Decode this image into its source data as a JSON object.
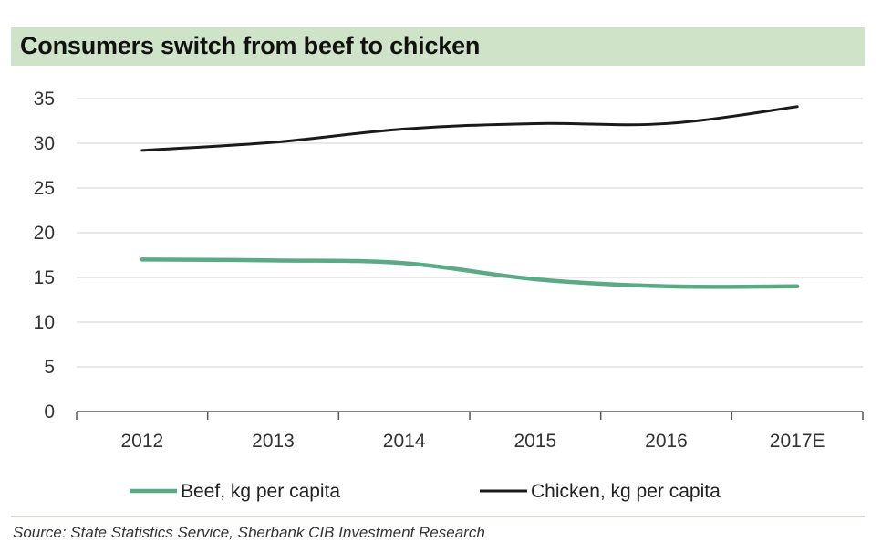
{
  "title": "Consumers switch from beef to chicken",
  "source": "Source: State Statistics Service, Sberbank CIB Investment Research",
  "colors": {
    "beef": "#5aaa84",
    "chicken": "#1a1a1a",
    "title_bg": "#cfe3c8",
    "grid": "#d9d9d9"
  },
  "chart_data": {
    "type": "line",
    "title": "Consumers switch from beef to chicken",
    "categories": [
      "2012",
      "2013",
      "2014",
      "2015",
      "2016",
      "2017E"
    ],
    "yticks": [
      "0",
      "5",
      "10",
      "15",
      "20",
      "25",
      "30",
      "35"
    ],
    "ylim": [
      0,
      35
    ],
    "grid": true,
    "legend_position": "bottom",
    "series": [
      {
        "name": "Beef, kg per capita",
        "values": [
          17.0,
          16.9,
          16.6,
          14.8,
          14.0,
          14.0
        ],
        "color": "#5aaa84"
      },
      {
        "name": "Chicken, kg per capita",
        "values": [
          29.2,
          30.1,
          31.6,
          32.2,
          32.2,
          34.1
        ],
        "color": "#1a1a1a"
      }
    ]
  }
}
